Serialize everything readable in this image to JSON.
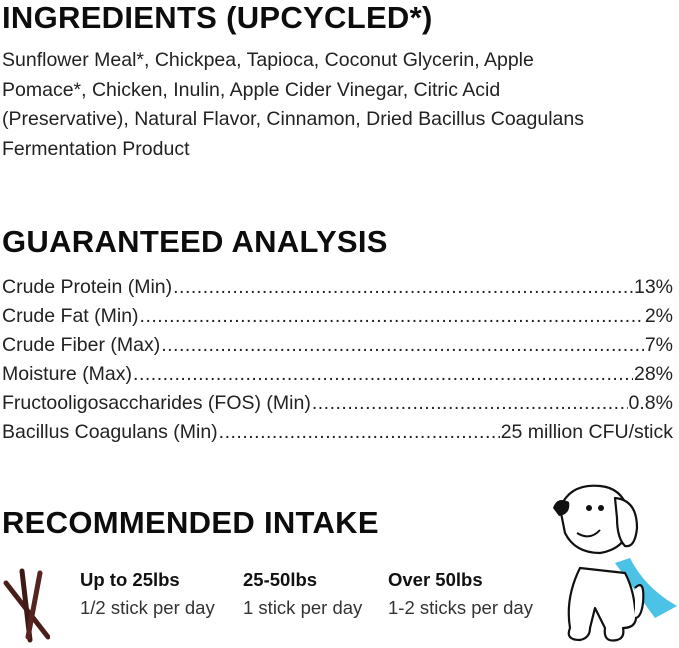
{
  "ingredients": {
    "title": "INGREDIENTS (UPCYCLED*)",
    "text": "Sunflower Meal*, Chickpea, Tapioca, Coconut Glycerin, Apple Pomace*, Chicken, Inulin, Apple Cider Vinegar, Citric Acid (Preservative), Natural Flavor, Cinnamon, Dried Bacillus Coagulans Fermentation Product"
  },
  "analysis": {
    "title": "GUARANTEED ANALYSIS",
    "rows": [
      {
        "label": "Crude Protein (Min)",
        "value": "13%"
      },
      {
        "label": "Crude Fat (Min)",
        "value": "2%"
      },
      {
        "label": "Crude Fiber (Max)",
        "value": "7%"
      },
      {
        "label": "Moisture (Max)",
        "value": "28%"
      },
      {
        "label": "Fructooligosaccharides (FOS) (Min)",
        "value": "0.8%"
      },
      {
        "label": "Bacillus Coagulans (Min)",
        "value": "25 million CFU/stick"
      }
    ]
  },
  "intake": {
    "title": "RECOMMENDED INTAKE",
    "columns": [
      {
        "weight": "Up to 25lbs",
        "amount": "1/2 stick per day"
      },
      {
        "weight": "25-50lbs",
        "amount": "1 stick per day"
      },
      {
        "weight": "Over 50lbs",
        "amount": "1-2 sticks per day"
      }
    ]
  },
  "colors": {
    "stick": "#4a1f1a",
    "cape": "#4cc3e6"
  }
}
